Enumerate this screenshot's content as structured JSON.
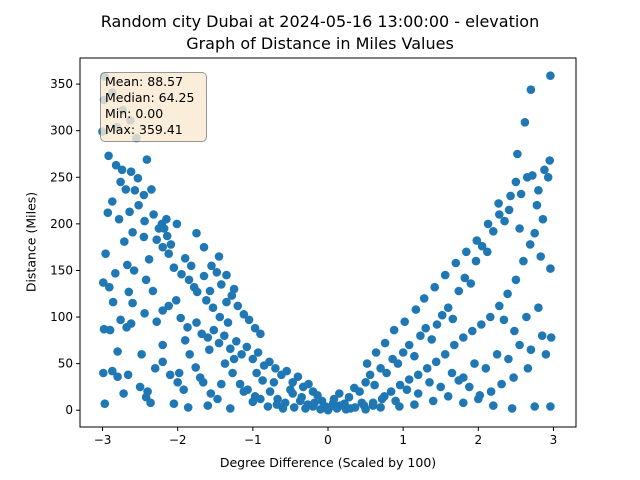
{
  "chart_data": {
    "type": "scatter",
    "title": "Random city Dubai at 2024-05-16 13:00:00  - elevation",
    "subtitle": "Graph of Distance in Miles Values",
    "xlabel": "Degree Difference (Scaled by 100)",
    "ylabel": "Distance (Miles)",
    "xlim": [
      -3.3,
      3.3
    ],
    "ylim": [
      -18,
      378
    ],
    "xticks": [
      -3,
      -2,
      -1,
      0,
      1,
      2,
      3
    ],
    "yticks": [
      0,
      50,
      100,
      150,
      200,
      250,
      300,
      350
    ],
    "grid": false,
    "marker_color": "#1f77b4",
    "stats": {
      "mean": "Mean: 88.57",
      "median": "Median: 64.25",
      "min": "Min: 0.00",
      "max": "Max: 359.41"
    },
    "points": [
      [
        -2.97,
        358
      ],
      [
        -2.98,
        333
      ],
      [
        -2.87,
        341
      ],
      [
        -3.0,
        299
      ],
      [
        -2.81,
        304
      ],
      [
        -2.73,
        322
      ],
      [
        -2.63,
        311
      ],
      [
        -2.55,
        292
      ],
      [
        -2.92,
        273
      ],
      [
        -2.82,
        263
      ],
      [
        -2.74,
        258
      ],
      [
        -2.62,
        256
      ],
      [
        -2.53,
        249
      ],
      [
        -2.41,
        269
      ],
      [
        -2.76,
        245
      ],
      [
        -2.69,
        237
      ],
      [
        -2.87,
        224
      ],
      [
        -2.93,
        212
      ],
      [
        -2.57,
        236
      ],
      [
        -2.45,
        231
      ],
      [
        -2.35,
        237
      ],
      [
        -2.78,
        205
      ],
      [
        -2.64,
        213
      ],
      [
        -2.52,
        220
      ],
      [
        -2.44,
        203
      ],
      [
        -2.32,
        210
      ],
      [
        -2.25,
        195
      ],
      [
        -2.15,
        205
      ],
      [
        -2.28,
        183
      ],
      [
        -2.2,
        175
      ],
      [
        -2.12,
        168
      ],
      [
        -2.6,
        191
      ],
      [
        -2.71,
        181
      ],
      [
        -2.45,
        186
      ],
      [
        -2.38,
        162
      ],
      [
        -2.96,
        168
      ],
      [
        -2.83,
        147
      ],
      [
        -2.91,
        132
      ],
      [
        -2.99,
        137
      ],
      [
        -2.67,
        156
      ],
      [
        -2.58,
        150
      ],
      [
        -2.65,
        127
      ],
      [
        -2.6,
        115
      ],
      [
        -2.42,
        140
      ],
      [
        -2.33,
        128
      ],
      [
        -2.05,
        153
      ],
      [
        -1.95,
        146
      ],
      [
        -1.85,
        140
      ],
      [
        -1.78,
        132
      ],
      [
        -1.65,
        144
      ],
      [
        -1.57,
        128
      ],
      [
        -1.48,
        148
      ],
      [
        -1.42,
        135
      ],
      [
        -1.35,
        116
      ],
      [
        -1.28,
        123
      ],
      [
        -1.2,
        112
      ],
      [
        -1.12,
        103
      ],
      [
        -1.05,
        97
      ],
      [
        -0.97,
        88
      ],
      [
        -0.9,
        82
      ],
      [
        -2.86,
        116
      ],
      [
        -2.76,
        97
      ],
      [
        -2.68,
        89
      ],
      [
        -2.62,
        93
      ],
      [
        -2.44,
        104
      ],
      [
        -2.28,
        95
      ],
      [
        -2.2,
        107
      ],
      [
        -2.12,
        112
      ],
      [
        -2.02,
        118
      ],
      [
        -1.96,
        99
      ],
      [
        -1.87,
        89
      ],
      [
        -1.75,
        94
      ],
      [
        -1.68,
        82
      ],
      [
        -1.6,
        78
      ],
      [
        -1.52,
        86
      ],
      [
        -1.45,
        72
      ],
      [
        -1.38,
        80
      ],
      [
        -1.3,
        66
      ],
      [
        -1.22,
        74
      ],
      [
        -1.15,
        60
      ],
      [
        -1.08,
        68
      ],
      [
        -1.0,
        55
      ],
      [
        -0.93,
        62
      ],
      [
        -0.85,
        48
      ],
      [
        -0.78,
        52
      ],
      [
        -0.7,
        45
      ],
      [
        -0.62,
        38
      ],
      [
        -0.55,
        42
      ],
      [
        -0.47,
        30
      ],
      [
        -0.4,
        36
      ],
      [
        -0.33,
        25
      ],
      [
        -0.26,
        28
      ],
      [
        -0.2,
        20
      ],
      [
        -0.14,
        16
      ],
      [
        -0.08,
        10
      ],
      [
        -0.03,
        4
      ],
      [
        -2.98,
        87
      ],
      [
        -2.9,
        86
      ],
      [
        -2.8,
        63
      ],
      [
        -2.87,
        42
      ],
      [
        -2.99,
        40
      ],
      [
        -2.8,
        36
      ],
      [
        -2.66,
        38
      ],
      [
        -2.5,
        25
      ],
      [
        -2.4,
        20
      ],
      [
        -2.3,
        45
      ],
      [
        -2.2,
        52
      ],
      [
        -2.1,
        38
      ],
      [
        -2.0,
        30
      ],
      [
        -1.92,
        22
      ],
      [
        -1.84,
        60
      ],
      [
        -1.76,
        46
      ],
      [
        -1.66,
        30
      ],
      [
        -1.56,
        18
      ],
      [
        -1.47,
        12
      ],
      [
        -1.37,
        50
      ],
      [
        -1.27,
        40
      ],
      [
        -1.17,
        28
      ],
      [
        -1.07,
        22
      ],
      [
        -0.97,
        15
      ],
      [
        -0.87,
        32
      ],
      [
        -0.77,
        20
      ],
      [
        -0.67,
        12
      ],
      [
        -0.57,
        8
      ],
      [
        -0.47,
        18
      ],
      [
        -0.37,
        10
      ],
      [
        -0.27,
        6
      ],
      [
        -2.97,
        7
      ],
      [
        -2.42,
        14
      ],
      [
        -2.05,
        7
      ],
      [
        -1.86,
        3
      ],
      [
        -1.6,
        5
      ],
      [
        -1.3,
        2
      ],
      [
        -1.0,
        9
      ],
      [
        -0.8,
        4
      ],
      [
        -0.6,
        2
      ],
      [
        -0.45,
        3
      ],
      [
        -0.3,
        2
      ],
      [
        -0.2,
        4
      ],
      [
        -0.1,
        1
      ],
      [
        0.0,
        0
      ],
      [
        0.02,
        3
      ],
      [
        0.07,
        8
      ],
      [
        0.12,
        2
      ],
      [
        -2.18,
        195
      ],
      [
        -2.14,
        187
      ],
      [
        -2.21,
        200
      ],
      [
        -2.09,
        178
      ],
      [
        -2.01,
        200
      ],
      [
        -1.9,
        163
      ],
      [
        -1.82,
        155
      ],
      [
        -1.74,
        127
      ],
      [
        -1.62,
        118
      ],
      [
        -1.53,
        110
      ],
      [
        -1.44,
        100
      ],
      [
        -1.33,
        94
      ],
      [
        0.08,
        12
      ],
      [
        0.15,
        18
      ],
      [
        0.22,
        7
      ],
      [
        0.28,
        14
      ],
      [
        0.35,
        24
      ],
      [
        0.42,
        20
      ],
      [
        0.5,
        30
      ],
      [
        0.56,
        38
      ],
      [
        0.62,
        27
      ],
      [
        0.7,
        45
      ],
      [
        0.78,
        40
      ],
      [
        0.86,
        55
      ],
      [
        0.93,
        50
      ],
      [
        1.0,
        62
      ],
      [
        1.08,
        70
      ],
      [
        1.15,
        58
      ],
      [
        1.23,
        80
      ],
      [
        1.3,
        88
      ],
      [
        1.38,
        76
      ],
      [
        1.45,
        92
      ],
      [
        1.52,
        102
      ],
      [
        1.6,
        110
      ],
      [
        1.66,
        98
      ],
      [
        1.74,
        128
      ],
      [
        1.82,
        142
      ],
      [
        1.9,
        136
      ],
      [
        1.97,
        160
      ],
      [
        2.05,
        176
      ],
      [
        2.12,
        170
      ],
      [
        2.2,
        192
      ],
      [
        2.28,
        210
      ],
      [
        2.35,
        203
      ],
      [
        2.43,
        230
      ],
      [
        2.5,
        245
      ],
      [
        2.57,
        232
      ],
      [
        2.65,
        250
      ],
      [
        2.72,
        252
      ],
      [
        2.8,
        236
      ],
      [
        2.88,
        258
      ],
      [
        2.95,
        268
      ],
      [
        0.3,
        2
      ],
      [
        0.45,
        8
      ],
      [
        0.6,
        5
      ],
      [
        0.75,
        15
      ],
      [
        0.9,
        10
      ],
      [
        1.05,
        22
      ],
      [
        1.2,
        18
      ],
      [
        1.35,
        30
      ],
      [
        1.5,
        25
      ],
      [
        1.65,
        40
      ],
      [
        1.8,
        35
      ],
      [
        1.95,
        50
      ],
      [
        2.1,
        45
      ],
      [
        2.25,
        60
      ],
      [
        2.4,
        55
      ],
      [
        2.55,
        70
      ],
      [
        2.7,
        65
      ],
      [
        2.85,
        80
      ],
      [
        2.97,
        78
      ],
      [
        0.52,
        50
      ],
      [
        0.64,
        62
      ],
      [
        0.76,
        72
      ],
      [
        0.88,
        86
      ],
      [
        1.02,
        95
      ],
      [
        1.17,
        108
      ],
      [
        1.28,
        120
      ],
      [
        1.42,
        132
      ],
      [
        1.56,
        145
      ],
      [
        1.7,
        158
      ],
      [
        1.84,
        170
      ],
      [
        1.98,
        182
      ],
      [
        2.13,
        200
      ],
      [
        2.27,
        222
      ],
      [
        2.41,
        215
      ],
      [
        2.55,
        195
      ],
      [
        2.69,
        178
      ],
      [
        2.83,
        165
      ],
      [
        2.96,
        152
      ],
      [
        2.52,
        275
      ],
      [
        2.7,
        344
      ],
      [
        2.62,
        309
      ],
      [
        2.96,
        359
      ],
      [
        2.93,
        250
      ],
      [
        2.78,
        220
      ],
      [
        2.86,
        205
      ],
      [
        2.75,
        190
      ],
      [
        2.6,
        160
      ],
      [
        2.5,
        140
      ],
      [
        2.39,
        125
      ],
      [
        2.28,
        112
      ],
      [
        2.16,
        100
      ],
      [
        2.04,
        92
      ],
      [
        1.92,
        85
      ],
      [
        1.8,
        78
      ],
      [
        1.68,
        70
      ],
      [
        1.56,
        60
      ],
      [
        1.44,
        52
      ],
      [
        1.32,
        45
      ],
      [
        1.2,
        38
      ],
      [
        1.08,
        33
      ],
      [
        0.96,
        27
      ],
      [
        0.84,
        20
      ],
      [
        0.72,
        12
      ],
      [
        0.6,
        8
      ],
      [
        0.48,
        5
      ],
      [
        0.36,
        3
      ],
      [
        0.24,
        1
      ],
      [
        0.16,
        5
      ],
      [
        2.2,
        5
      ],
      [
        2.45,
        2
      ],
      [
        2.75,
        4
      ],
      [
        2.96,
        4
      ],
      [
        2.0,
        12
      ],
      [
        1.8,
        8
      ],
      [
        1.6,
        15
      ],
      [
        1.4,
        10
      ],
      [
        1.15,
        6
      ],
      [
        0.95,
        4
      ],
      [
        0.7,
        3
      ],
      [
        0.5,
        1
      ],
      [
        2.34,
        97
      ],
      [
        2.48,
        85
      ],
      [
        2.64,
        100
      ],
      [
        2.8,
        110
      ],
      [
        2.9,
        60
      ],
      [
        2.66,
        45
      ],
      [
        2.47,
        35
      ],
      [
        2.31,
        28
      ],
      [
        2.17,
        20
      ],
      [
        2.02,
        16
      ],
      [
        1.88,
        25
      ],
      [
        1.74,
        32
      ],
      [
        -2.48,
        60
      ],
      [
        -2.2,
        70
      ],
      [
        -1.9,
        75
      ],
      [
        -1.58,
        65
      ],
      [
        -1.25,
        55
      ],
      [
        -0.95,
        40
      ],
      [
        -0.72,
        30
      ],
      [
        -0.5,
        22
      ],
      [
        -0.35,
        14
      ],
      [
        -0.18,
        8
      ],
      [
        -2.72,
        18
      ],
      [
        -2.36,
        8
      ],
      [
        -1.98,
        40
      ],
      [
        -1.7,
        35
      ],
      [
        -1.42,
        28
      ],
      [
        -1.12,
        20
      ],
      [
        -0.9,
        12
      ],
      [
        -0.68,
        6
      ],
      [
        -1.55,
        155
      ],
      [
        -1.45,
        165
      ],
      [
        -1.65,
        175
      ],
      [
        -1.75,
        190
      ],
      [
        -1.35,
        145
      ],
      [
        -1.25,
        130
      ]
    ]
  }
}
